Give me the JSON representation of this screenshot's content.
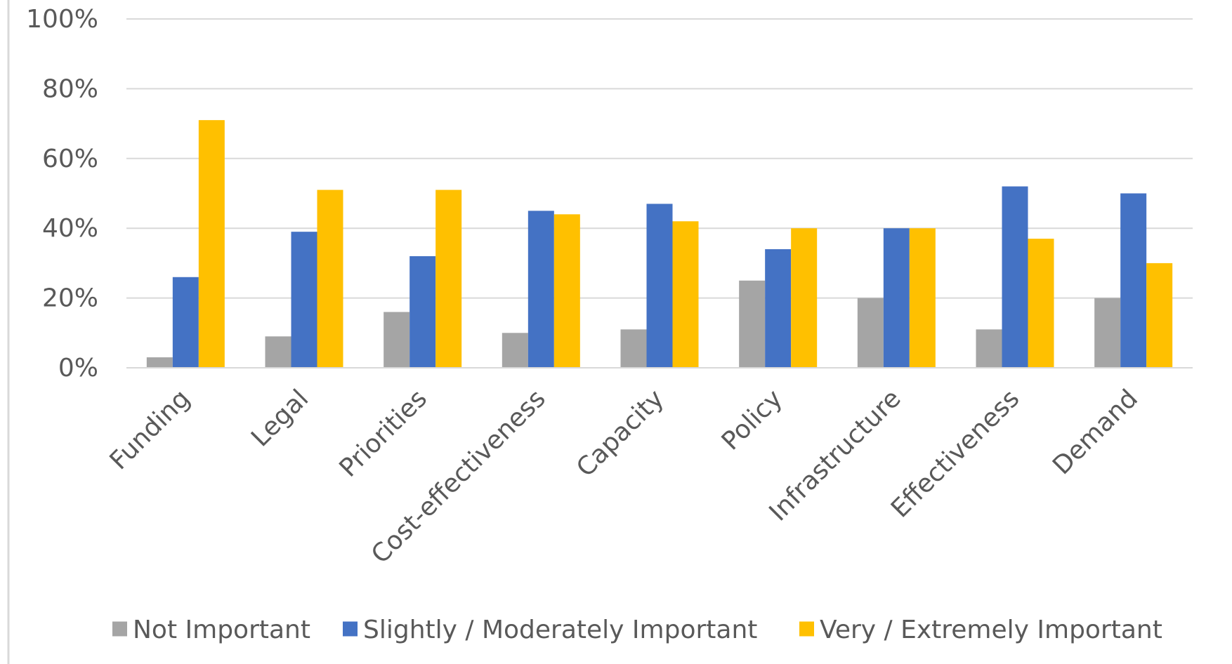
{
  "chart_data": {
    "type": "bar",
    "categories": [
      "Funding",
      "Legal",
      "Priorities",
      "Cost-effectiveness",
      "Capacity",
      "Policy",
      "Infrastructure",
      "Effectiveness",
      "Demand"
    ],
    "series": [
      {
        "name": "Not Important",
        "color": "#a5a5a5",
        "values": [
          3,
          9,
          16,
          10,
          11,
          25,
          20,
          11,
          20
        ]
      },
      {
        "name": "Slightly / Moderately Important",
        "color": "#4472c4",
        "values": [
          26,
          39,
          32,
          45,
          47,
          34,
          40,
          52,
          50
        ]
      },
      {
        "name": "Very / Extremely Important",
        "color": "#ffc000",
        "values": [
          71,
          51,
          51,
          44,
          42,
          40,
          40,
          37,
          30
        ]
      }
    ],
    "y_ticks": [
      "0%",
      "20%",
      "40%",
      "60%",
      "80%",
      "100%"
    ],
    "y_tick_values": [
      0,
      20,
      40,
      60,
      80,
      100
    ],
    "ylim": [
      0,
      100
    ],
    "grid": true,
    "legend_position": "bottom"
  }
}
